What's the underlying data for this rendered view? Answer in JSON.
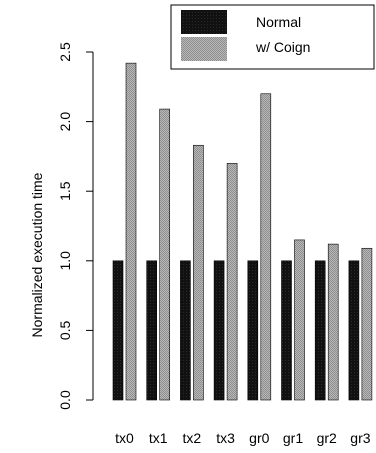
{
  "chart_data": {
    "type": "bar",
    "categories": [
      "tx0",
      "tx1",
      "tx2",
      "tx3",
      "gr0",
      "gr1",
      "gr2",
      "gr3"
    ],
    "series": [
      {
        "name": "Normal",
        "values": [
          1.0,
          1.0,
          1.0,
          1.0,
          1.0,
          1.0,
          1.0,
          1.0
        ],
        "color": "#111111"
      },
      {
        "name": "w/ Coign",
        "values": [
          2.42,
          2.09,
          1.83,
          1.7,
          2.2,
          1.15,
          1.12,
          1.09
        ],
        "color": "#aaaaaa"
      }
    ],
    "ylabel": "Normalized execution time",
    "xlabel": "",
    "title": "",
    "ylim": [
      0,
      2.5
    ],
    "yticks": [
      0.0,
      0.5,
      1.0,
      1.5,
      2.0,
      2.5
    ],
    "ytick_labels": [
      "0.0",
      "0.5",
      "1.0",
      "1.5",
      "2.0",
      "2.5"
    ],
    "grid": false,
    "legend_position": "top-right"
  }
}
